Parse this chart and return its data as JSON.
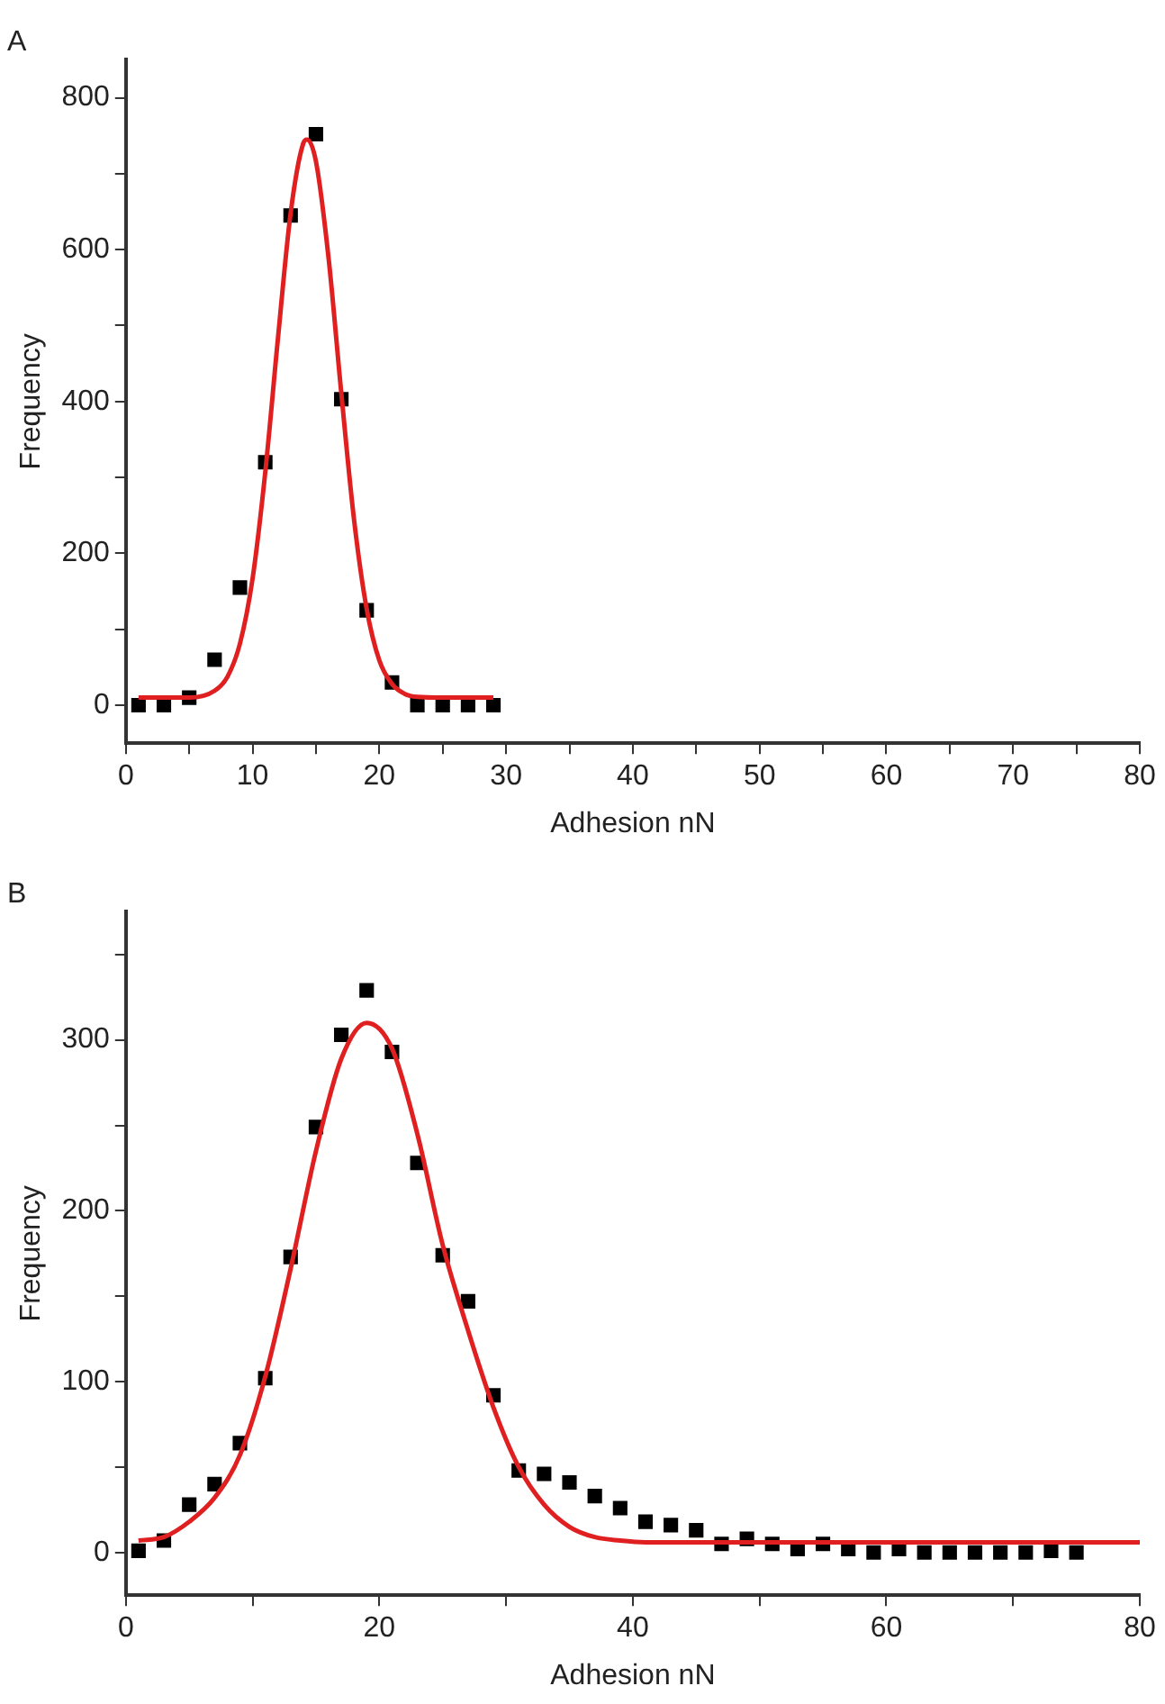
{
  "chart_data": [
    {
      "type": "scatter",
      "title": "A",
      "xlabel": "Adhesion nN",
      "ylabel": "Frequency",
      "xlim": [
        0,
        80
      ],
      "ylim": [
        -50,
        850
      ],
      "xticks": [
        0,
        {
          "value": 5,
          "label": null
        },
        10,
        {
          "value": 15,
          "label": null
        },
        20,
        {
          "value": 25,
          "label": null
        },
        30,
        {
          "value": 35,
          "label": null
        },
        40,
        {
          "value": 45,
          "label": null
        },
        50,
        {
          "value": 55,
          "label": null
        },
        60,
        {
          "value": 65,
          "label": null
        },
        70,
        {
          "value": 75,
          "label": null
        },
        80
      ],
      "yticks": [
        0,
        {
          "value": 100,
          "label": null
        },
        200,
        {
          "value": 300,
          "label": null
        },
        400,
        {
          "value": 500,
          "label": null
        },
        600,
        {
          "value": 700,
          "label": null
        },
        800
      ],
      "grid": false,
      "legend": false,
      "series": [
        {
          "type": "scatter",
          "marker": "square",
          "color": "#000000",
          "x": [
            1,
            3,
            5,
            7,
            9,
            11,
            13,
            15,
            17,
            19,
            21,
            23,
            25,
            27,
            29
          ],
          "values": [
            0,
            0,
            10,
            60,
            155,
            320,
            645,
            752,
            403,
            125,
            30,
            0,
            0,
            0,
            0
          ]
        },
        {
          "type": "line",
          "marker": "none",
          "line_style": "solid",
          "color": "#e02020",
          "x": [
            1,
            5,
            7,
            8,
            9,
            10,
            11,
            12,
            13,
            14,
            14.3,
            15,
            16,
            17,
            18,
            19,
            20,
            21,
            22,
            23,
            25,
            29
          ],
          "values": [
            10,
            10,
            19,
            37,
            81,
            167,
            307,
            483,
            648,
            740,
            745,
            716,
            588,
            411,
            245,
            127,
            59,
            28,
            15,
            11,
            10,
            10
          ]
        }
      ]
    },
    {
      "type": "scatter",
      "title": "B",
      "xlabel": "Adhesion nN",
      "ylabel": "Frequency",
      "xlim": [
        0,
        80
      ],
      "ylim": [
        -25,
        375
      ],
      "xticks": [
        0,
        {
          "value": 10,
          "label": null
        },
        20,
        {
          "value": 30,
          "label": null
        },
        40,
        {
          "value": 50,
          "label": null
        },
        60,
        {
          "value": 70,
          "label": null
        },
        80
      ],
      "yticks": [
        0,
        {
          "value": 50,
          "label": null
        },
        100,
        {
          "value": 150,
          "label": null
        },
        200,
        {
          "value": 250,
          "label": null
        },
        300,
        {
          "value": 350,
          "label": null
        }
      ],
      "grid": false,
      "legend": false,
      "series": [
        {
          "type": "scatter",
          "marker": "square",
          "color": "#000000",
          "x": [
            1,
            3,
            5,
            7,
            9,
            11,
            13,
            15,
            17,
            19,
            21,
            23,
            25,
            27,
            29,
            31,
            33,
            35,
            37,
            39,
            41,
            43,
            45,
            47,
            49,
            51,
            53,
            55,
            57,
            59,
            61,
            63,
            65,
            67,
            69,
            71,
            73,
            75
          ],
          "values": [
            1,
            7,
            28,
            40,
            64,
            102,
            173,
            249,
            303,
            329,
            293,
            228,
            174,
            147,
            92,
            48,
            46,
            41,
            33,
            26,
            18,
            16,
            13,
            5,
            8,
            5,
            2,
            5,
            2,
            0,
            2,
            0,
            0,
            0,
            0,
            0,
            1,
            0
          ]
        },
        {
          "type": "line",
          "marker": "none",
          "line_style": "solid",
          "color": "#e02020",
          "x": [
            1,
            3,
            5,
            7,
            9,
            11,
            13,
            15,
            17,
            19,
            21,
            23,
            25,
            27,
            29,
            31,
            33,
            35,
            37,
            39,
            41,
            50,
            60,
            70,
            80
          ],
          "values": [
            7,
            9,
            18,
            32,
            57,
            103,
            166,
            235,
            289,
            310,
            295,
            245,
            180,
            130,
            85,
            50,
            28,
            15,
            9,
            7,
            6,
            6,
            6,
            6,
            6
          ]
        }
      ]
    }
  ]
}
